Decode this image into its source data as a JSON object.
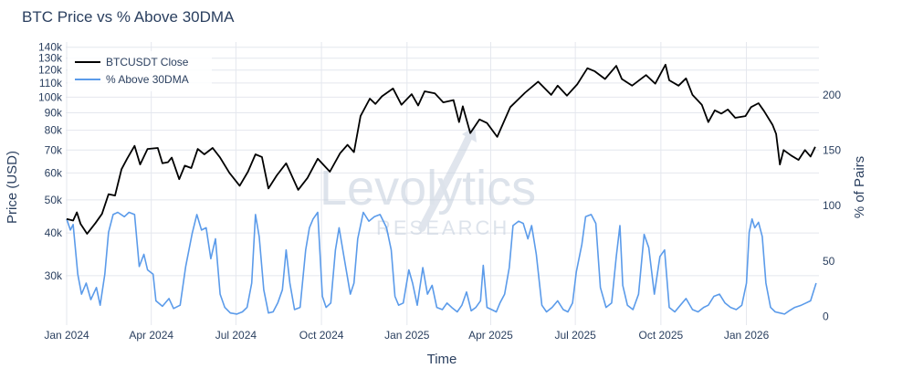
{
  "chart_data": {
    "type": "line",
    "title": "BTC Price vs % Above 30DMA",
    "xlabel": "Time",
    "ylabel_left": "Price (USD)",
    "ylabel_right": "% of Pairs",
    "y_left_scale": "log",
    "y_left_range": [
      21500,
      145000
    ],
    "y_right_range": [
      -8,
      248
    ],
    "x_range": [
      "2023-12-31",
      "2026-03-20"
    ],
    "grid": true,
    "legend_position": "top-left",
    "x_ticks": [
      {
        "date": "2024-01-01",
        "label": "Jan 2024"
      },
      {
        "date": "2024-04-01",
        "label": "Apr 2024"
      },
      {
        "date": "2024-07-01",
        "label": "Jul 2024"
      },
      {
        "date": "2024-10-01",
        "label": "Oct 2024"
      },
      {
        "date": "2025-01-01",
        "label": "Jan 2025"
      },
      {
        "date": "2025-04-01",
        "label": "Apr 2025"
      },
      {
        "date": "2025-07-01",
        "label": "Jul 2025"
      },
      {
        "date": "2025-10-01",
        "label": "Oct 2025"
      },
      {
        "date": "2026-01-01",
        "label": "Jan 2026"
      }
    ],
    "y_left_ticks": [
      {
        "value": 30000,
        "label": "30k"
      },
      {
        "value": 40000,
        "label": "40k"
      },
      {
        "value": 50000,
        "label": "50k"
      },
      {
        "value": 60000,
        "label": "60k"
      },
      {
        "value": 70000,
        "label": "70k"
      },
      {
        "value": 80000,
        "label": "80k"
      },
      {
        "value": 90000,
        "label": "90k"
      },
      {
        "value": 100000,
        "label": "100k"
      },
      {
        "value": 110000,
        "label": "110k"
      },
      {
        "value": 120000,
        "label": "120k"
      },
      {
        "value": 130000,
        "label": "130k"
      },
      {
        "value": 140000,
        "label": "140k"
      }
    ],
    "y_right_ticks": [
      {
        "value": 0,
        "label": "0"
      },
      {
        "value": 50,
        "label": "50"
      },
      {
        "value": 100,
        "label": "100"
      },
      {
        "value": 150,
        "label": "150"
      },
      {
        "value": 200,
        "label": "200"
      }
    ],
    "series": [
      {
        "name": "BTCUSDT Close",
        "axis": "left",
        "color": "#000000",
        "points": [
          [
            "2024-01-01",
            44000
          ],
          [
            "2024-01-08",
            43500
          ],
          [
            "2024-01-12",
            46000
          ],
          [
            "2024-01-16",
            42500
          ],
          [
            "2024-01-23",
            39800
          ],
          [
            "2024-02-01",
            42800
          ],
          [
            "2024-02-08",
            45500
          ],
          [
            "2024-02-15",
            52000
          ],
          [
            "2024-02-22",
            51500
          ],
          [
            "2024-02-29",
            61500
          ],
          [
            "2024-03-06",
            66000
          ],
          [
            "2024-03-14",
            72000
          ],
          [
            "2024-03-20",
            63500
          ],
          [
            "2024-03-28",
            70500
          ],
          [
            "2024-04-08",
            71000
          ],
          [
            "2024-04-13",
            64000
          ],
          [
            "2024-04-19",
            64500
          ],
          [
            "2024-04-23",
            66500
          ],
          [
            "2024-05-01",
            57500
          ],
          [
            "2024-05-07",
            63000
          ],
          [
            "2024-05-14",
            62000
          ],
          [
            "2024-05-21",
            70500
          ],
          [
            "2024-05-28",
            68000
          ],
          [
            "2024-06-06",
            71000
          ],
          [
            "2024-06-14",
            66500
          ],
          [
            "2024-06-24",
            60000
          ],
          [
            "2024-07-05",
            55000
          ],
          [
            "2024-07-14",
            60500
          ],
          [
            "2024-07-22",
            68000
          ],
          [
            "2024-07-29",
            66800
          ],
          [
            "2024-08-05",
            54000
          ],
          [
            "2024-08-14",
            59000
          ],
          [
            "2024-08-24",
            64000
          ],
          [
            "2024-09-06",
            53500
          ],
          [
            "2024-09-16",
            58000
          ],
          [
            "2024-09-27",
            66000
          ],
          [
            "2024-10-10",
            60500
          ],
          [
            "2024-10-21",
            68500
          ],
          [
            "2024-10-29",
            72500
          ],
          [
            "2024-11-05",
            69000
          ],
          [
            "2024-11-12",
            88000
          ],
          [
            "2024-11-22",
            99000
          ],
          [
            "2024-11-28",
            95500
          ],
          [
            "2024-12-05",
            100500
          ],
          [
            "2024-12-17",
            106000
          ],
          [
            "2024-12-26",
            95000
          ],
          [
            "2025-01-06",
            102000
          ],
          [
            "2025-01-13",
            94500
          ],
          [
            "2025-01-20",
            104000
          ],
          [
            "2025-01-31",
            102500
          ],
          [
            "2025-02-09",
            96500
          ],
          [
            "2025-02-20",
            98000
          ],
          [
            "2025-02-26",
            84500
          ],
          [
            "2025-03-02",
            94000
          ],
          [
            "2025-03-10",
            78500
          ],
          [
            "2025-03-20",
            86000
          ],
          [
            "2025-03-28",
            84000
          ],
          [
            "2025-04-08",
            76500
          ],
          [
            "2025-04-22",
            93500
          ],
          [
            "2025-05-08",
            103000
          ],
          [
            "2025-05-22",
            111000
          ],
          [
            "2025-06-05",
            101500
          ],
          [
            "2025-06-12",
            108000
          ],
          [
            "2025-06-22",
            101000
          ],
          [
            "2025-07-03",
            109000
          ],
          [
            "2025-07-14",
            121500
          ],
          [
            "2025-07-22",
            119000
          ],
          [
            "2025-08-02",
            113000
          ],
          [
            "2025-08-14",
            123500
          ],
          [
            "2025-08-20",
            113000
          ],
          [
            "2025-08-31",
            108000
          ],
          [
            "2025-09-15",
            116000
          ],
          [
            "2025-09-25",
            109500
          ],
          [
            "2025-10-06",
            124500
          ],
          [
            "2025-10-10",
            112000
          ],
          [
            "2025-10-20",
            108000
          ],
          [
            "2025-10-28",
            113500
          ],
          [
            "2025-11-04",
            101500
          ],
          [
            "2025-11-14",
            95000
          ],
          [
            "2025-11-21",
            84500
          ],
          [
            "2025-11-28",
            91500
          ],
          [
            "2025-12-05",
            89500
          ],
          [
            "2025-12-12",
            92000
          ],
          [
            "2025-12-20",
            87000
          ],
          [
            "2025-12-31",
            88000
          ],
          [
            "2026-01-06",
            93500
          ],
          [
            "2026-01-14",
            96000
          ],
          [
            "2026-01-20",
            91000
          ],
          [
            "2026-01-29",
            83000
          ],
          [
            "2026-02-02",
            78000
          ],
          [
            "2026-02-06",
            63500
          ],
          [
            "2026-02-10",
            70000
          ],
          [
            "2026-02-18",
            67500
          ],
          [
            "2026-02-26",
            65500
          ],
          [
            "2026-03-05",
            70000
          ],
          [
            "2026-03-11",
            67000
          ],
          [
            "2026-03-16",
            71500
          ]
        ]
      },
      {
        "name": "% Above 30DMA",
        "axis": "right",
        "color": "#5b9bea",
        "points": [
          [
            "2024-01-01",
            88
          ],
          [
            "2024-01-05",
            78
          ],
          [
            "2024-01-08",
            83
          ],
          [
            "2024-01-13",
            38
          ],
          [
            "2024-01-17",
            20
          ],
          [
            "2024-01-22",
            30
          ],
          [
            "2024-01-27",
            15
          ],
          [
            "2024-02-02",
            26
          ],
          [
            "2024-02-06",
            10
          ],
          [
            "2024-02-11",
            38
          ],
          [
            "2024-02-15",
            76
          ],
          [
            "2024-02-20",
            92
          ],
          [
            "2024-02-25",
            94
          ],
          [
            "2024-03-03",
            90
          ],
          [
            "2024-03-08",
            94
          ],
          [
            "2024-03-14",
            92
          ],
          [
            "2024-03-19",
            45
          ],
          [
            "2024-03-24",
            56
          ],
          [
            "2024-03-28",
            42
          ],
          [
            "2024-04-03",
            38
          ],
          [
            "2024-04-06",
            14
          ],
          [
            "2024-04-13",
            9
          ],
          [
            "2024-04-20",
            16
          ],
          [
            "2024-04-25",
            7
          ],
          [
            "2024-05-02",
            10
          ],
          [
            "2024-05-08",
            45
          ],
          [
            "2024-05-15",
            75
          ],
          [
            "2024-05-20",
            92
          ],
          [
            "2024-05-25",
            78
          ],
          [
            "2024-05-30",
            80
          ],
          [
            "2024-06-04",
            52
          ],
          [
            "2024-06-09",
            70
          ],
          [
            "2024-06-14",
            20
          ],
          [
            "2024-06-19",
            8
          ],
          [
            "2024-06-25",
            3
          ],
          [
            "2024-07-02",
            2
          ],
          [
            "2024-07-08",
            4
          ],
          [
            "2024-07-13",
            8
          ],
          [
            "2024-07-18",
            30
          ],
          [
            "2024-07-22",
            92
          ],
          [
            "2024-07-26",
            72
          ],
          [
            "2024-07-31",
            24
          ],
          [
            "2024-08-05",
            3
          ],
          [
            "2024-08-10",
            4
          ],
          [
            "2024-08-15",
            12
          ],
          [
            "2024-08-20",
            24
          ],
          [
            "2024-08-24",
            60
          ],
          [
            "2024-08-28",
            30
          ],
          [
            "2024-09-02",
            6
          ],
          [
            "2024-09-08",
            8
          ],
          [
            "2024-09-14",
            60
          ],
          [
            "2024-09-18",
            80
          ],
          [
            "2024-09-22",
            88
          ],
          [
            "2024-09-27",
            94
          ],
          [
            "2024-10-02",
            18
          ],
          [
            "2024-10-06",
            8
          ],
          [
            "2024-10-11",
            12
          ],
          [
            "2024-10-16",
            60
          ],
          [
            "2024-10-20",
            80
          ],
          [
            "2024-10-25",
            55
          ],
          [
            "2024-11-01",
            20
          ],
          [
            "2024-11-05",
            30
          ],
          [
            "2024-11-09",
            70
          ],
          [
            "2024-11-15",
            94
          ],
          [
            "2024-11-21",
            86
          ],
          [
            "2024-11-27",
            90
          ],
          [
            "2024-12-03",
            92
          ],
          [
            "2024-12-10",
            80
          ],
          [
            "2024-12-15",
            60
          ],
          [
            "2024-12-19",
            18
          ],
          [
            "2024-12-23",
            10
          ],
          [
            "2024-12-28",
            12
          ],
          [
            "2025-01-03",
            42
          ],
          [
            "2025-01-07",
            30
          ],
          [
            "2025-01-12",
            10
          ],
          [
            "2025-01-18",
            44
          ],
          [
            "2025-01-23",
            20
          ],
          [
            "2025-01-28",
            28
          ],
          [
            "2025-02-02",
            8
          ],
          [
            "2025-02-08",
            6
          ],
          [
            "2025-02-13",
            12
          ],
          [
            "2025-02-18",
            8
          ],
          [
            "2025-02-24",
            4
          ],
          [
            "2025-03-01",
            10
          ],
          [
            "2025-03-06",
            22
          ],
          [
            "2025-03-11",
            5
          ],
          [
            "2025-03-16",
            8
          ],
          [
            "2025-03-21",
            14
          ],
          [
            "2025-03-24",
            46
          ],
          [
            "2025-03-28",
            8
          ],
          [
            "2025-04-02",
            6
          ],
          [
            "2025-04-07",
            4
          ],
          [
            "2025-04-11",
            12
          ],
          [
            "2025-04-16",
            20
          ],
          [
            "2025-04-21",
            44
          ],
          [
            "2025-04-25",
            82
          ],
          [
            "2025-05-01",
            86
          ],
          [
            "2025-05-06",
            84
          ],
          [
            "2025-05-11",
            70
          ],
          [
            "2025-05-15",
            82
          ],
          [
            "2025-05-20",
            56
          ],
          [
            "2025-05-26",
            10
          ],
          [
            "2025-05-31",
            4
          ],
          [
            "2025-06-06",
            8
          ],
          [
            "2025-06-12",
            14
          ],
          [
            "2025-06-18",
            6
          ],
          [
            "2025-06-23",
            4
          ],
          [
            "2025-06-28",
            12
          ],
          [
            "2025-07-02",
            40
          ],
          [
            "2025-07-08",
            65
          ],
          [
            "2025-07-12",
            90
          ],
          [
            "2025-07-18",
            92
          ],
          [
            "2025-07-23",
            84
          ],
          [
            "2025-07-28",
            26
          ],
          [
            "2025-08-03",
            8
          ],
          [
            "2025-08-09",
            12
          ],
          [
            "2025-08-14",
            54
          ],
          [
            "2025-08-18",
            82
          ],
          [
            "2025-08-21",
            28
          ],
          [
            "2025-08-26",
            10
          ],
          [
            "2025-09-01",
            6
          ],
          [
            "2025-09-07",
            20
          ],
          [
            "2025-09-13",
            74
          ],
          [
            "2025-09-18",
            62
          ],
          [
            "2025-09-24",
            20
          ],
          [
            "2025-09-30",
            54
          ],
          [
            "2025-10-05",
            60
          ],
          [
            "2025-10-10",
            8
          ],
          [
            "2025-10-16",
            4
          ],
          [
            "2025-10-22",
            10
          ],
          [
            "2025-10-28",
            16
          ],
          [
            "2025-11-04",
            6
          ],
          [
            "2025-11-10",
            4
          ],
          [
            "2025-11-16",
            8
          ],
          [
            "2025-11-21",
            10
          ],
          [
            "2025-11-27",
            18
          ],
          [
            "2025-12-03",
            20
          ],
          [
            "2025-12-09",
            12
          ],
          [
            "2025-12-15",
            8
          ],
          [
            "2025-12-21",
            6
          ],
          [
            "2025-12-27",
            10
          ],
          [
            "2026-01-01",
            30
          ],
          [
            "2026-01-04",
            76
          ],
          [
            "2026-01-07",
            88
          ],
          [
            "2026-01-10",
            80
          ],
          [
            "2026-01-14",
            85
          ],
          [
            "2026-01-18",
            72
          ],
          [
            "2026-01-22",
            30
          ],
          [
            "2026-01-27",
            8
          ],
          [
            "2026-02-01",
            4
          ],
          [
            "2026-02-06",
            3
          ],
          [
            "2026-02-11",
            2
          ],
          [
            "2026-02-16",
            5
          ],
          [
            "2026-02-22",
            8
          ],
          [
            "2026-03-01",
            10
          ],
          [
            "2026-03-06",
            12
          ],
          [
            "2026-03-11",
            14
          ],
          [
            "2026-03-17",
            30
          ]
        ]
      }
    ]
  },
  "watermark": {
    "brand": "Levolytics",
    "sub": "RESEARCH"
  }
}
